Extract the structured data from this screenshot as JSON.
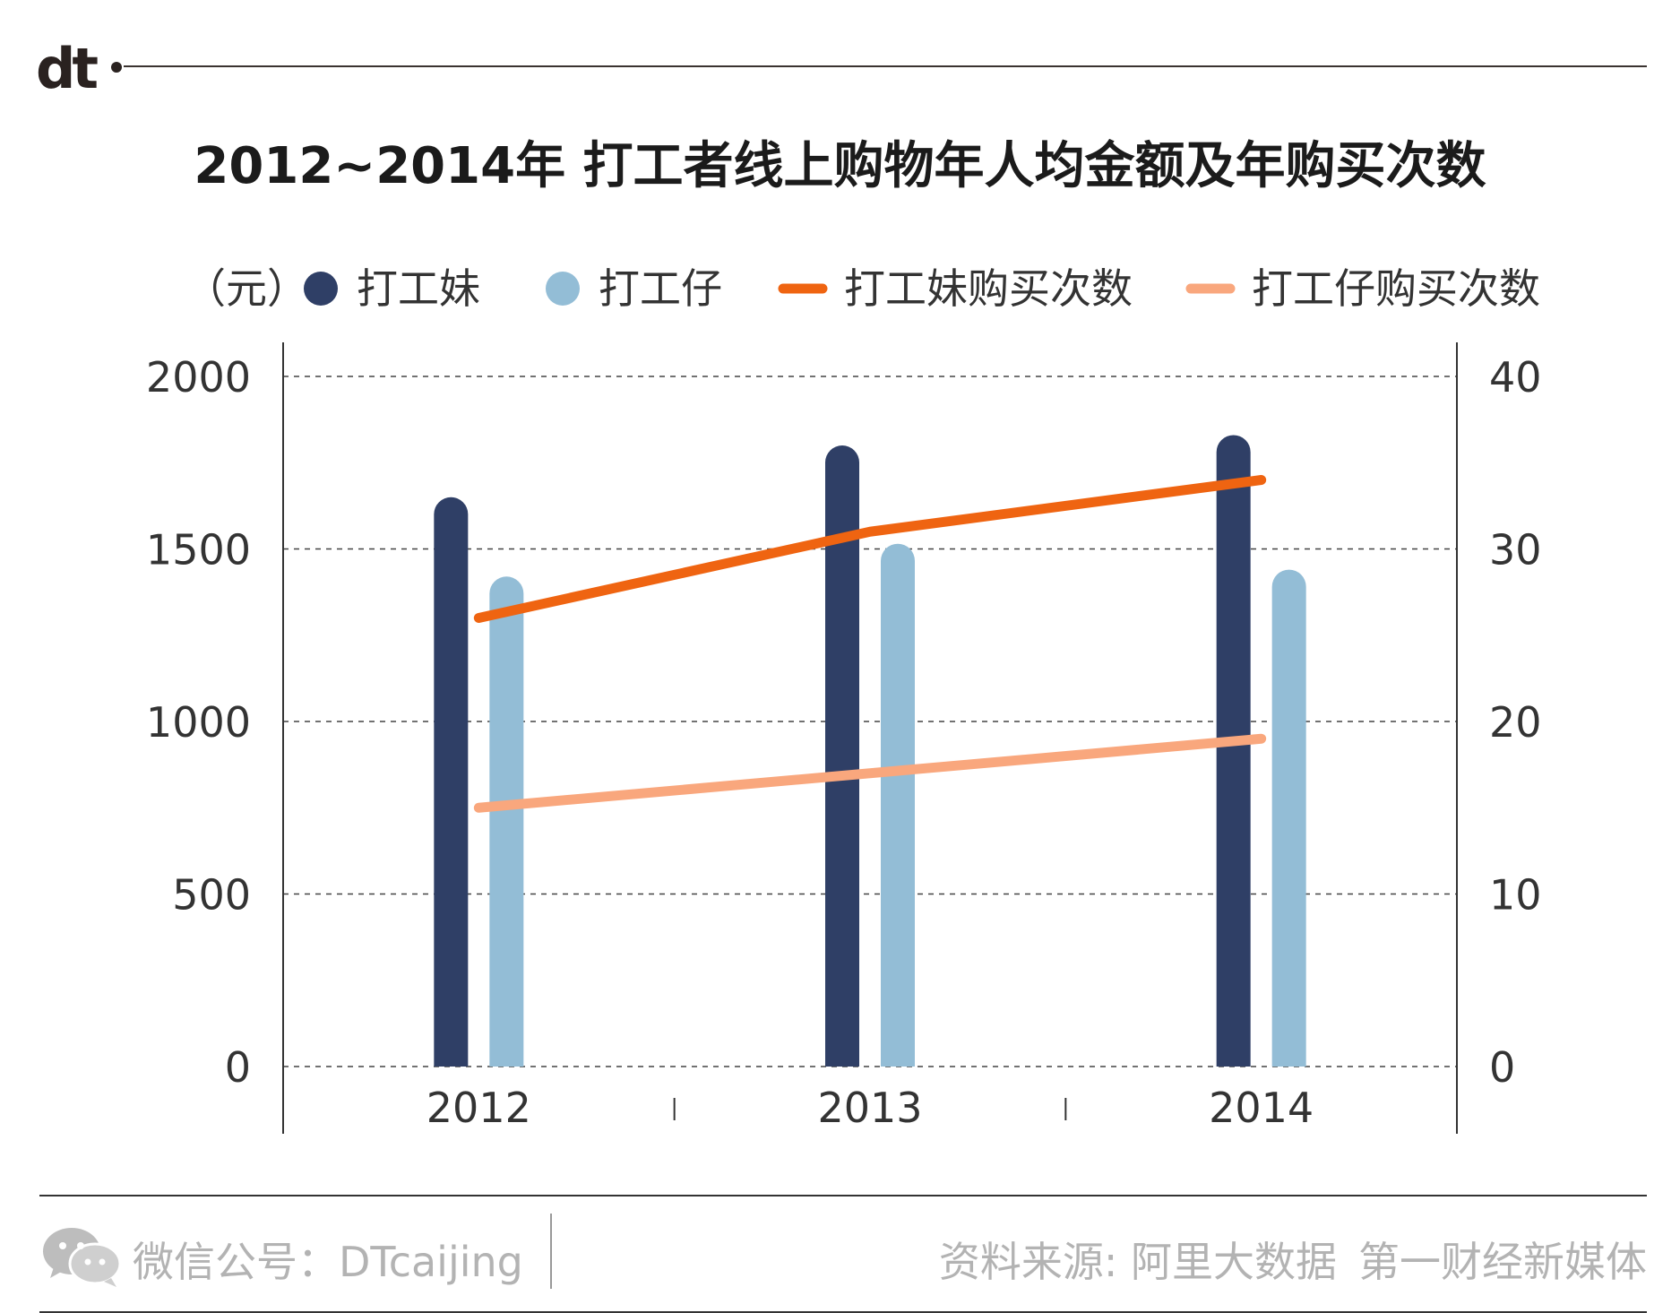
{
  "brand": {
    "logo_text": "dt"
  },
  "chart_data": {
    "type": "bar",
    "title": "2012~2014年 打工者线上购物年人均金额及年购买次数",
    "unit_label": "（元）",
    "categories": [
      "2012",
      "2013",
      "2014"
    ],
    "y_left": {
      "min": 0,
      "max": 2000,
      "ticks": [
        "2000",
        "1500",
        "1000",
        "500",
        "0"
      ]
    },
    "y_right": {
      "min": 0,
      "max": 40,
      "ticks": [
        "40",
        "30",
        "20",
        "10",
        "0"
      ]
    },
    "grid": "dashed-horizontal",
    "legend_position": "top",
    "series": [
      {
        "name": "打工妹",
        "kind": "bar",
        "axis": "left",
        "color": "#2f3f66",
        "values": [
          1650,
          1800,
          1830
        ]
      },
      {
        "name": "打工仔",
        "kind": "bar",
        "axis": "left",
        "color": "#93bdd6",
        "values": [
          1420,
          1515,
          1440
        ]
      },
      {
        "name": "打工妹购买次数",
        "kind": "line",
        "axis": "right",
        "color": "#ef6411",
        "values": [
          26,
          31,
          34
        ]
      },
      {
        "name": "打工仔购买次数",
        "kind": "line",
        "axis": "right",
        "color": "#f9a77d",
        "values": [
          15,
          17,
          19
        ]
      }
    ]
  },
  "footer": {
    "wechat": "微信公号：DTcaijing",
    "source": "资料来源: 阿里大数据",
    "publisher": "第一财经新媒体"
  }
}
